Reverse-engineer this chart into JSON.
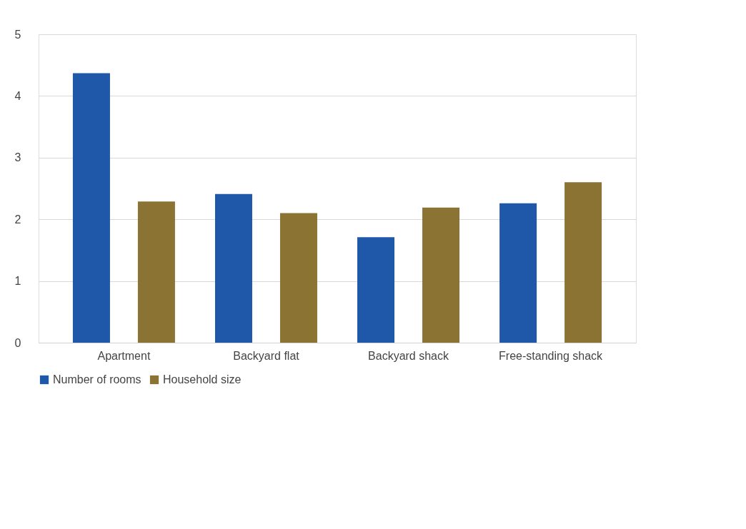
{
  "chart_data": {
    "type": "bar",
    "categories": [
      "Apartment",
      "Backyard flat",
      "Backyard shack",
      "Free-standing shack"
    ],
    "series": [
      {
        "name": "Number of rooms",
        "color": "#1f58a8",
        "values": [
          4.37,
          2.41,
          1.71,
          2.26
        ]
      },
      {
        "name": "Household size",
        "color": "#8b7334",
        "values": [
          2.29,
          2.1,
          2.19,
          2.6
        ]
      }
    ],
    "ylim": [
      0,
      5
    ],
    "yticks": [
      0,
      1,
      2,
      3,
      4,
      5
    ],
    "grid": "y",
    "legend": "bottom"
  }
}
